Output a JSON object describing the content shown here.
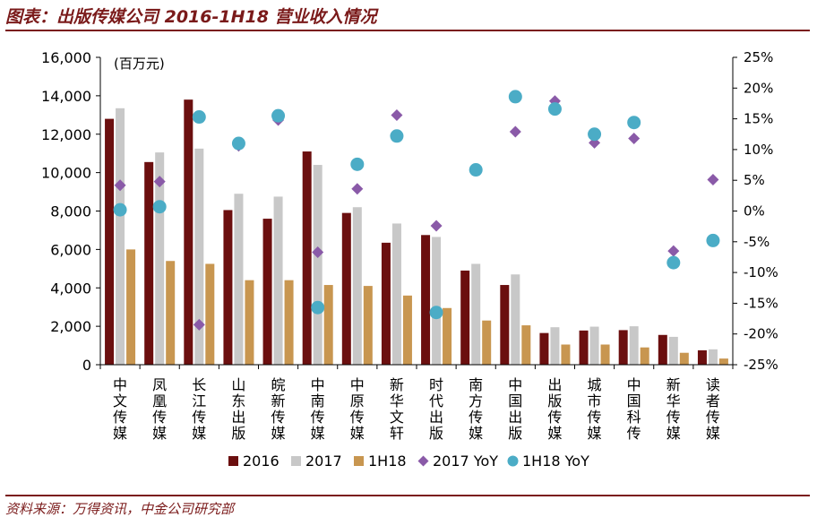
{
  "header": {
    "title": "图表：出版传媒公司 2016-1H18 营业收入情况"
  },
  "footer": {
    "source": "资料来源：万得资讯，中金公司研究部"
  },
  "chart_data": {
    "type": "bar",
    "unit_label": "(百万元)",
    "categories": [
      "中文传媒",
      "凤凰传媒",
      "长江传媒",
      "山东出版",
      "皖新传媒",
      "中南传媒",
      "中原传媒",
      "新华文轩",
      "时代出版",
      "南方传媒",
      "中国出版",
      "出版传媒",
      "城市传媒",
      "中国科传",
      "新华传媒",
      "读者传媒"
    ],
    "series": [
      {
        "name": "2016",
        "type": "bar",
        "color": "#6b0f0f",
        "values": [
          12800,
          10550,
          13800,
          8050,
          7600,
          11100,
          7900,
          6350,
          6750,
          4900,
          4150,
          1650,
          1780,
          1800,
          1550,
          750
        ]
      },
      {
        "name": "2017",
        "type": "bar",
        "color": "#c8c8c8",
        "values": [
          13350,
          11050,
          11250,
          8900,
          8750,
          10400,
          8200,
          7350,
          6650,
          5250,
          4700,
          1950,
          1980,
          2000,
          1450,
          800
        ]
      },
      {
        "name": "1H18",
        "type": "bar",
        "color": "#c89650",
        "values": [
          6000,
          5400,
          5250,
          4400,
          4400,
          4150,
          4100,
          3600,
          2950,
          2300,
          2050,
          1050,
          1050,
          900,
          620,
          320
        ]
      },
      {
        "name": "2017 YoY",
        "type": "scatter",
        "axis": "right",
        "color": "#8a5aa8",
        "marker": "diamond",
        "values": [
          4.2,
          4.8,
          -18.5,
          10.6,
          14.8,
          -6.7,
          3.6,
          15.6,
          -2.4,
          6.7,
          12.9,
          17.9,
          11.1,
          11.8,
          -6.5,
          5.1
        ]
      },
      {
        "name": "1H18 YoY",
        "type": "scatter",
        "axis": "right",
        "color": "#4bacc6",
        "marker": "circle",
        "values": [
          0.2,
          0.7,
          15.3,
          11.0,
          15.5,
          -15.7,
          7.6,
          12.2,
          -16.5,
          6.7,
          18.6,
          16.6,
          12.5,
          14.4,
          -8.4,
          -4.8
        ]
      }
    ],
    "y_left": {
      "min": 0,
      "max": 16000,
      "step": 2000,
      "tick_labels": [
        "0",
        "2,000",
        "4,000",
        "6,000",
        "8,000",
        "10,000",
        "12,000",
        "14,000",
        "16,000"
      ]
    },
    "y_right": {
      "min": -25,
      "max": 25,
      "step": 5,
      "tick_labels": [
        "-25%",
        "-20%",
        "-15%",
        "-10%",
        "-5%",
        "0%",
        "5%",
        "10%",
        "15%",
        "20%",
        "25%"
      ]
    },
    "legend": {
      "position": "bottom"
    },
    "grid": false
  }
}
